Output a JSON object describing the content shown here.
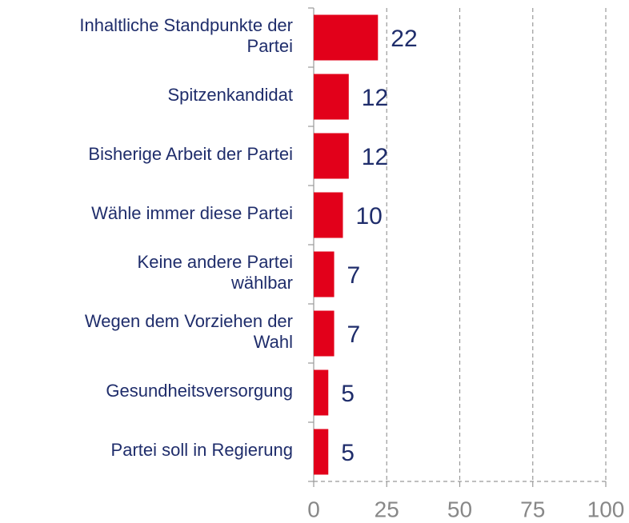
{
  "chart_data": {
    "type": "bar",
    "orientation": "horizontal",
    "categories": [
      "Inhaltliche Standpunkte der\nPartei",
      "Spitzenkandidat",
      "Bisherige Arbeit der Partei",
      "Wähle immer diese Partei",
      "Keine andere Partei\nwählbar",
      "Wegen dem Vorziehen der\nWahl",
      "Gesundheitsversorgung",
      "Partei soll in Regierung"
    ],
    "values": [
      22,
      12,
      12,
      10,
      7,
      7,
      5,
      5
    ],
    "color": "#e2001a",
    "xlim": [
      0,
      100
    ],
    "xticks": [
      0,
      25,
      50,
      75,
      100
    ],
    "grid": true
  }
}
